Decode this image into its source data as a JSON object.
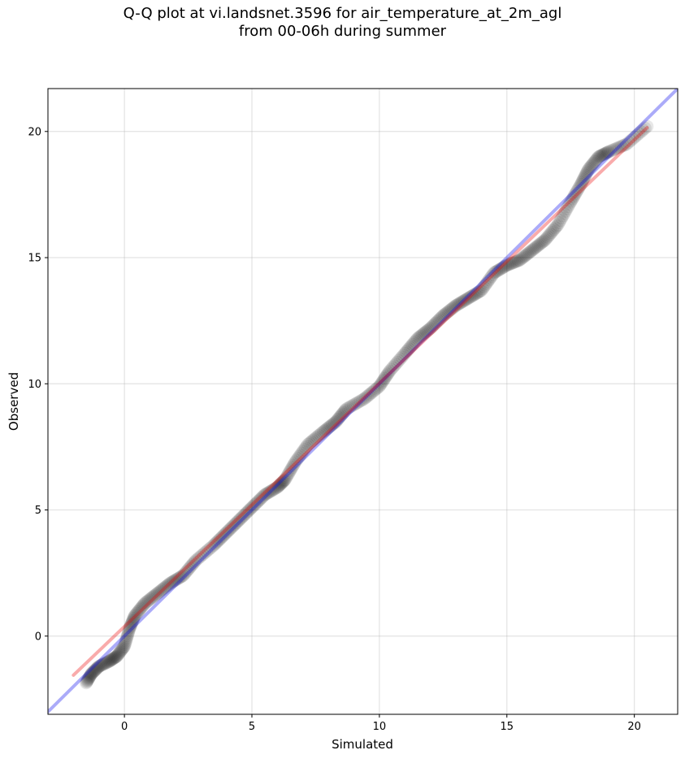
{
  "chart_data": {
    "type": "scatter",
    "title_line1": "Q-Q plot at vi.landsnet.3596 for air_temperature_at_2m_agl",
    "title_line2": "from 00-06h during summer",
    "xlabel": "Simulated",
    "ylabel": "Observed",
    "xlim": [
      -3.0,
      21.7
    ],
    "ylim": [
      -3.1,
      21.7
    ],
    "xticks": [
      0,
      5,
      10,
      15,
      20
    ],
    "yticks": [
      0,
      5,
      10,
      15,
      20
    ],
    "grid": true,
    "reference_lines": [
      {
        "name": "1:1",
        "color": "#0000ee",
        "x": [
          -3.0,
          21.7
        ],
        "y": [
          -3.0,
          21.7
        ]
      },
      {
        "name": "fit",
        "color": "#ee0000",
        "x": [
          -2.0,
          20.5
        ],
        "y": [
          -1.55,
          20.15
        ]
      }
    ],
    "points_color": "#000000",
    "quantile_curve": [
      [
        -1.5,
        -1.85
      ],
      [
        -1.3,
        -1.5
      ],
      [
        -1.0,
        -1.2
      ],
      [
        -0.6,
        -1.0
      ],
      [
        -0.3,
        -0.8
      ],
      [
        0.0,
        -0.4
      ],
      [
        0.2,
        0.3
      ],
      [
        0.4,
        0.8
      ],
      [
        0.8,
        1.3
      ],
      [
        1.3,
        1.7
      ],
      [
        1.8,
        2.1
      ],
      [
        2.3,
        2.4
      ],
      [
        2.8,
        3.0
      ],
      [
        3.5,
        3.6
      ],
      [
        4.0,
        4.1
      ],
      [
        4.5,
        4.6
      ],
      [
        5.0,
        5.1
      ],
      [
        5.5,
        5.6
      ],
      [
        6.0,
        5.9
      ],
      [
        6.3,
        6.2
      ],
      [
        6.7,
        6.9
      ],
      [
        7.2,
        7.6
      ],
      [
        7.8,
        8.1
      ],
      [
        8.3,
        8.5
      ],
      [
        8.7,
        9.0
      ],
      [
        9.4,
        9.4
      ],
      [
        10.0,
        9.9
      ],
      [
        10.4,
        10.5
      ],
      [
        11.0,
        11.2
      ],
      [
        11.5,
        11.8
      ],
      [
        12.0,
        12.2
      ],
      [
        12.5,
        12.7
      ],
      [
        13.0,
        13.1
      ],
      [
        13.5,
        13.4
      ],
      [
        14.0,
        13.7
      ],
      [
        14.5,
        14.4
      ],
      [
        15.0,
        14.7
      ],
      [
        15.5,
        14.9
      ],
      [
        16.0,
        15.3
      ],
      [
        16.5,
        15.7
      ],
      [
        17.0,
        16.3
      ],
      [
        17.5,
        17.2
      ],
      [
        17.9,
        17.9
      ],
      [
        18.2,
        18.5
      ],
      [
        18.6,
        19.0
      ],
      [
        19.0,
        19.2
      ],
      [
        19.7,
        19.5
      ],
      [
        20.5,
        20.2
      ]
    ]
  }
}
